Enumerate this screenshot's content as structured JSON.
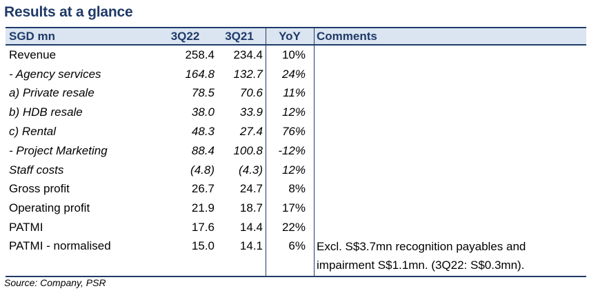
{
  "title": "Results at a glance",
  "header": {
    "col0": "SGD mn",
    "col1": "3Q22",
    "col2": "3Q21",
    "col3": "YoY",
    "col4": "Comments"
  },
  "rows": [
    {
      "label": "Revenue",
      "v1": "258.4",
      "v2": "234.4",
      "yoy": "10%",
      "comment": ""
    },
    {
      "label": " - Agency services",
      "v1": "164.8",
      "v2": "132.7",
      "yoy": "24%",
      "comment": ""
    },
    {
      "label": "a) Private resale",
      "v1": "78.5",
      "v2": "70.6",
      "yoy": "11%",
      "comment": ""
    },
    {
      "label": "b) HDB resale",
      "v1": "38.0",
      "v2": "33.9",
      "yoy": "12%",
      "comment": ""
    },
    {
      "label": "c) Rental",
      "v1": "48.3",
      "v2": "27.4",
      "yoy": "76%",
      "comment": ""
    },
    {
      "label": " - Project Marketing",
      "v1": "88.4",
      "v2": "100.8",
      "yoy": "-12%",
      "comment": ""
    },
    {
      "label": "Staff costs",
      "v1": "(4.8)",
      "v2": "(4.3)",
      "yoy": "12%",
      "comment": ""
    },
    {
      "label": "Gross profit",
      "v1": "26.7",
      "v2": "24.7",
      "yoy": "8%",
      "comment": ""
    },
    {
      "label": "Operating profit",
      "v1": "21.9",
      "v2": "18.7",
      "yoy": "17%",
      "comment": ""
    },
    {
      "label": "PATMI",
      "v1": "17.6",
      "v2": "14.4",
      "yoy": "22%",
      "comment": ""
    },
    {
      "label": "PATMI - normalised",
      "v1": "15.0",
      "v2": "14.1",
      "yoy": "6%",
      "comment": "Excl. S$3.7mn recognition payables and impairment S$1.1mn. (3Q22: S$0.3mn)."
    }
  ],
  "source": "Source: Company, PSR"
}
